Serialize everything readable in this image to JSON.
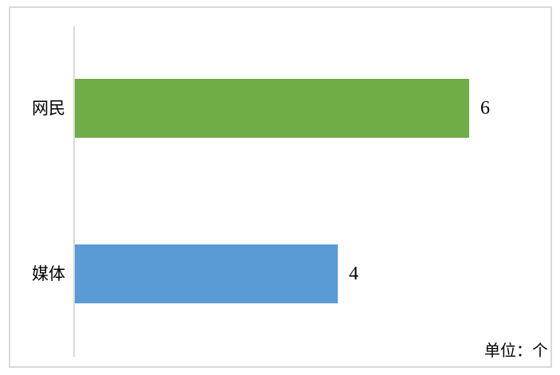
{
  "chart_data": {
    "type": "bar",
    "orientation": "horizontal",
    "title": "",
    "categories": [
      "网民",
      "媒体"
    ],
    "values": [
      6,
      4
    ],
    "value_labels": [
      "6",
      "4"
    ],
    "bar_colors": [
      "#70AD47",
      "#5B9BD5"
    ],
    "unit_label": "单位：个",
    "xlim": [
      0,
      6
    ],
    "axis_color": "#D9D9D9",
    "text_color": "#000000",
    "grid": false,
    "legend": false
  }
}
